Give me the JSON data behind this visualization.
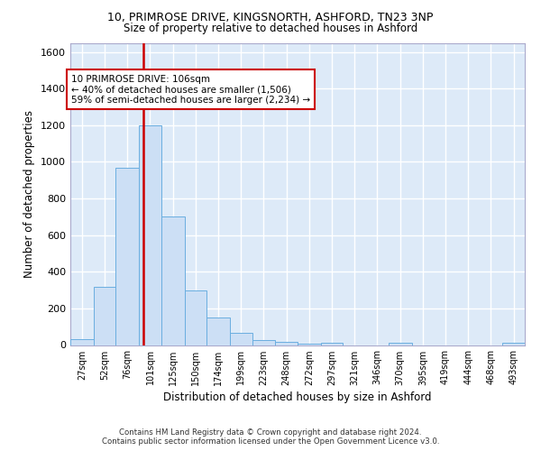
{
  "title_line1": "10, PRIMROSE DRIVE, KINGSNORTH, ASHFORD, TN23 3NP",
  "title_line2": "Size of property relative to detached houses in Ashford",
  "xlabel": "Distribution of detached houses by size in Ashford",
  "ylabel": "Number of detached properties",
  "bar_color": "#ccdff5",
  "bar_edge_color": "#6aaee0",
  "axes_bg_color": "#ddeaf8",
  "grid_color": "#ffffff",
  "property_line_x": 106,
  "annotation_text": "10 PRIMROSE DRIVE: 106sqm\n← 40% of detached houses are smaller (1,506)\n59% of semi-detached houses are larger (2,234) →",
  "annotation_box_facecolor": "#ffffff",
  "annotation_box_edgecolor": "#cc0000",
  "red_line_color": "#cc0000",
  "footer_line1": "Contains HM Land Registry data © Crown copyright and database right 2024.",
  "footer_line2": "Contains public sector information licensed under the Open Government Licence v3.0.",
  "bins": [
    27,
    52,
    76,
    101,
    125,
    150,
    174,
    199,
    223,
    248,
    272,
    297,
    321,
    346,
    370,
    395,
    419,
    444,
    468,
    493,
    517
  ],
  "bar_heights": [
    30,
    320,
    970,
    1200,
    700,
    300,
    150,
    65,
    25,
    15,
    5,
    10,
    0,
    0,
    10,
    0,
    0,
    0,
    0,
    10
  ],
  "ylim_max": 1650,
  "yticks": [
    0,
    200,
    400,
    600,
    800,
    1000,
    1200,
    1400,
    1600
  ],
  "figsize": [
    6.0,
    5.0
  ],
  "dpi": 100
}
